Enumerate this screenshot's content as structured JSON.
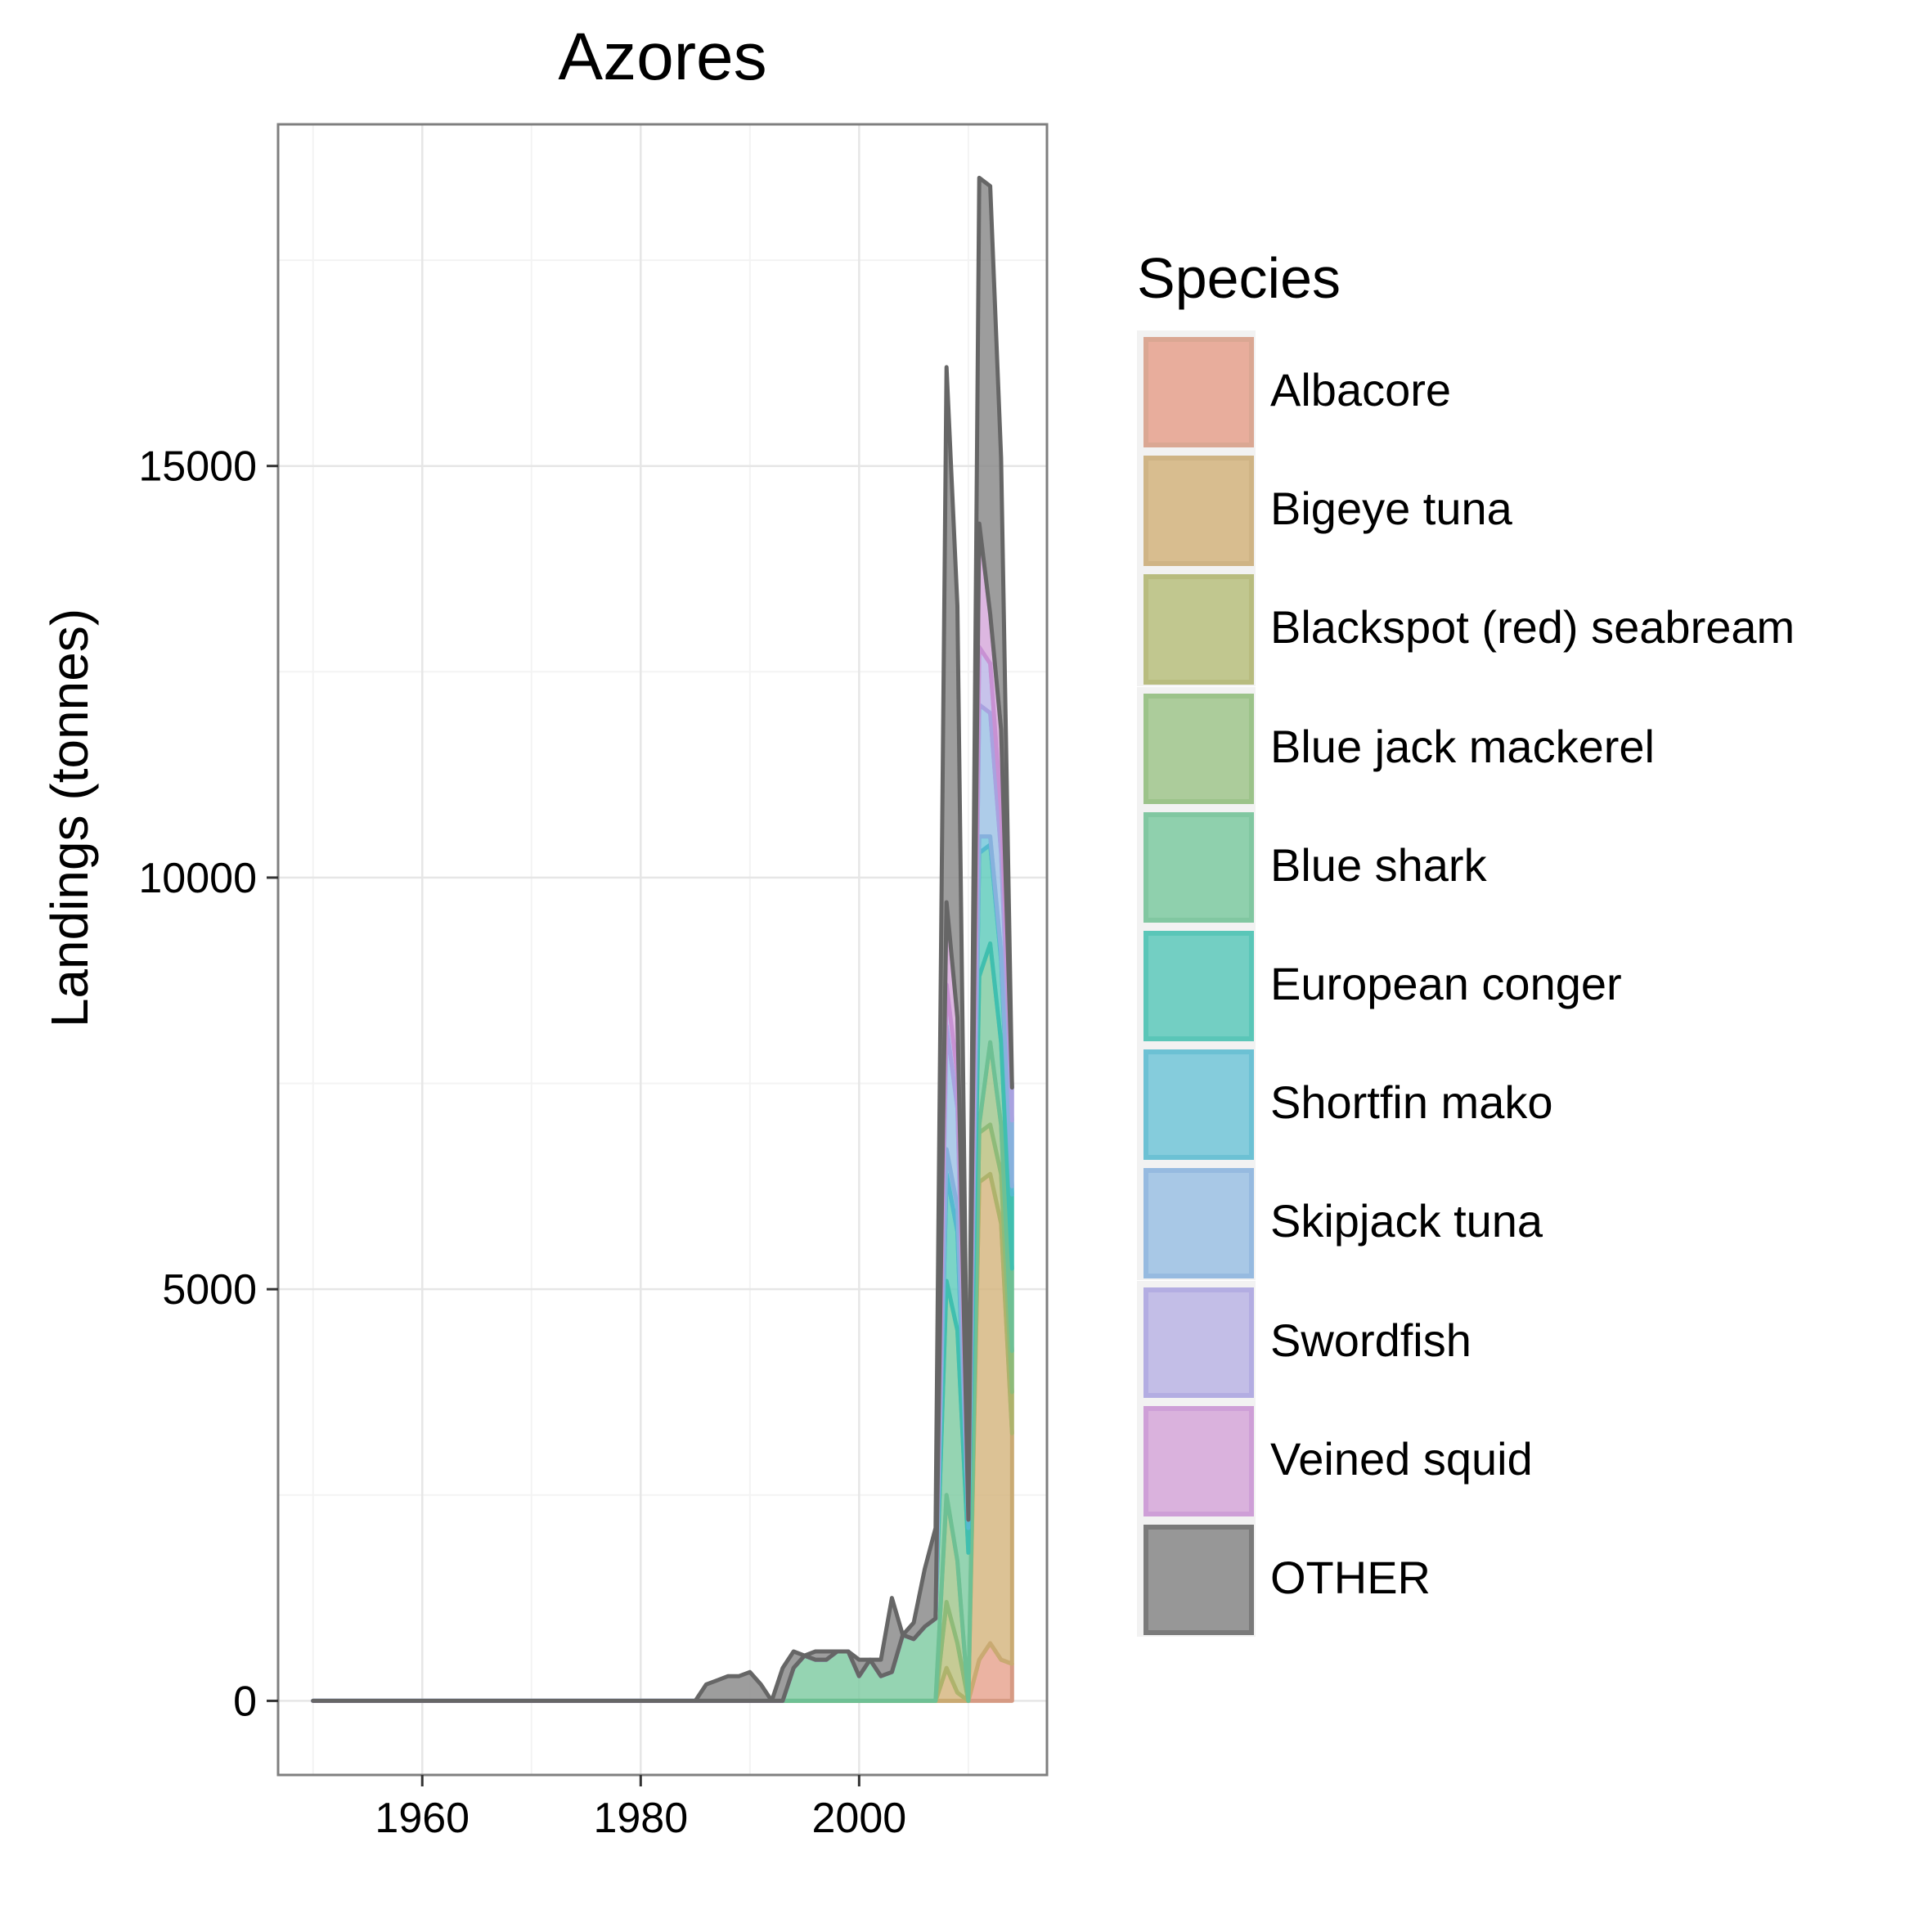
{
  "chart_data": {
    "type": "area",
    "title": "Azores",
    "xlabel": "",
    "ylabel": "Landings (tonnes)",
    "xlim": [
      1946.8,
      2017.2
    ],
    "ylim": [
      -900,
      19150
    ],
    "x_ticks": [
      1960,
      1980,
      2000
    ],
    "y_ticks": [
      0,
      5000,
      10000,
      15000
    ],
    "grid": true,
    "stacked": true,
    "legend_title": "Species",
    "legend_position": "right",
    "x": [
      1950,
      1955,
      1960,
      1965,
      1970,
      1975,
      1980,
      1985,
      1986,
      1987,
      1988,
      1989,
      1990,
      1991,
      1992,
      1993,
      1994,
      1995,
      1996,
      1997,
      1998,
      1999,
      2000,
      2001,
      2002,
      2003,
      2004,
      2005,
      2006,
      2007,
      2008,
      2009,
      2010,
      2011,
      2012,
      2013,
      2014
    ],
    "series": [
      {
        "name": "Albacore",
        "color": "#E7A28E",
        "border": "#D69A83",
        "values": [
          0,
          0,
          0,
          0,
          0,
          0,
          0,
          0,
          0,
          0,
          0,
          0,
          0,
          0,
          0,
          0,
          0,
          0,
          0,
          0,
          0,
          0,
          0,
          0,
          0,
          0,
          0,
          0,
          0,
          0,
          0,
          0,
          0,
          500,
          700,
          500,
          450
        ]
      },
      {
        "name": "Bigeye tuna",
        "color": "#D4B47E",
        "border": "#C9AA72",
        "values": [
          0,
          0,
          0,
          0,
          0,
          0,
          0,
          0,
          0,
          0,
          0,
          0,
          0,
          0,
          0,
          0,
          0,
          0,
          0,
          0,
          0,
          0,
          0,
          0,
          0,
          0,
          0,
          0,
          0,
          0,
          400,
          100,
          0,
          5800,
          5700,
          5300,
          2800
        ]
      },
      {
        "name": "Blackspot (red) seabream",
        "color": "#B9C07E",
        "border": "#AEB36C",
        "values": [
          0,
          0,
          0,
          0,
          0,
          0,
          0,
          0,
          0,
          0,
          0,
          0,
          0,
          0,
          0,
          0,
          0,
          0,
          0,
          0,
          0,
          0,
          0,
          0,
          0,
          0,
          0,
          0,
          0,
          0,
          800,
          600,
          0,
          600,
          600,
          600,
          500
        ]
      },
      {
        "name": "Blue jack mackerel",
        "color": "#A0C68C",
        "border": "#8EBB79",
        "values": [
          0,
          0,
          0,
          0,
          0,
          0,
          0,
          0,
          0,
          0,
          0,
          0,
          0,
          0,
          0,
          0,
          0,
          0,
          0,
          0,
          0,
          0,
          0,
          0,
          0,
          0,
          0,
          0,
          0,
          0,
          1300,
          1000,
          0,
          100,
          1000,
          600,
          500
        ]
      },
      {
        "name": "Blue shark",
        "color": "#7ECBA1",
        "border": "#6EC094",
        "values": [
          0,
          0,
          0,
          0,
          0,
          0,
          0,
          0,
          0,
          0,
          0,
          0,
          0,
          0,
          0,
          0,
          400,
          550,
          500,
          500,
          600,
          600,
          300,
          500,
          300,
          350,
          800,
          750,
          900,
          1000,
          2600,
          2800,
          1800,
          1800,
          1200,
          1000,
          1000
        ]
      },
      {
        "name": "European conger",
        "color": "#5ECABB",
        "border": "#40BFAF",
        "values": [
          0,
          0,
          0,
          0,
          0,
          0,
          0,
          0,
          0,
          0,
          0,
          0,
          0,
          0,
          0,
          0,
          0,
          0,
          0,
          0,
          0,
          0,
          0,
          0,
          0,
          0,
          0,
          0,
          0,
          0,
          1300,
          1200,
          300,
          1500,
          1200,
          1000,
          900
        ]
      },
      {
        "name": "Shortfin mako",
        "color": "#72C6D9",
        "border": "#55B9CF",
        "values": [
          0,
          0,
          0,
          0,
          0,
          0,
          0,
          0,
          0,
          0,
          0,
          0,
          0,
          0,
          0,
          0,
          0,
          0,
          0,
          0,
          0,
          0,
          0,
          0,
          0,
          0,
          0,
          0,
          0,
          0,
          300,
          300,
          100,
          200,
          100,
          100,
          100
        ]
      },
      {
        "name": "Skipjack tuna",
        "color": "#9CC1E4",
        "border": "#87B1DD",
        "values": [
          0,
          0,
          0,
          0,
          0,
          0,
          0,
          0,
          0,
          0,
          0,
          0,
          0,
          0,
          0,
          0,
          0,
          0,
          0,
          0,
          0,
          0,
          0,
          0,
          0,
          0,
          0,
          0,
          0,
          0,
          1500,
          1200,
          0,
          1600,
          1500,
          1200,
          800
        ]
      },
      {
        "name": "Swordfish",
        "color": "#BBB6E6",
        "border": "#A9A2E0",
        "values": [
          0,
          0,
          0,
          0,
          0,
          0,
          0,
          0,
          0,
          0,
          0,
          0,
          0,
          0,
          0,
          0,
          0,
          0,
          0,
          0,
          0,
          0,
          0,
          0,
          0,
          0,
          0,
          0,
          0,
          0,
          500,
          400,
          0,
          700,
          600,
          500,
          400
        ]
      },
      {
        "name": "Veined squid",
        "color": "#D6A7DA",
        "border": "#C891D3",
        "values": [
          0,
          0,
          0,
          0,
          0,
          0,
          0,
          0,
          0,
          0,
          0,
          0,
          0,
          0,
          0,
          0,
          0,
          0,
          0,
          0,
          0,
          0,
          0,
          0,
          0,
          0,
          0,
          0,
          0,
          0,
          1000,
          700,
          0,
          1500,
          600,
          1000,
          0
        ]
      },
      {
        "name": "OTHER",
        "color": "#888888",
        "border": "#666666",
        "values": [
          0,
          0,
          0,
          0,
          0,
          0,
          0,
          0,
          200,
          250,
          300,
          300,
          350,
          200,
          0,
          400,
          200,
          0,
          100,
          100,
          0,
          0,
          200,
          0,
          200,
          900,
          0,
          200,
          700,
          1100,
          6500,
          5000,
          200,
          4200,
          5200,
          3300,
          0
        ]
      }
    ]
  }
}
